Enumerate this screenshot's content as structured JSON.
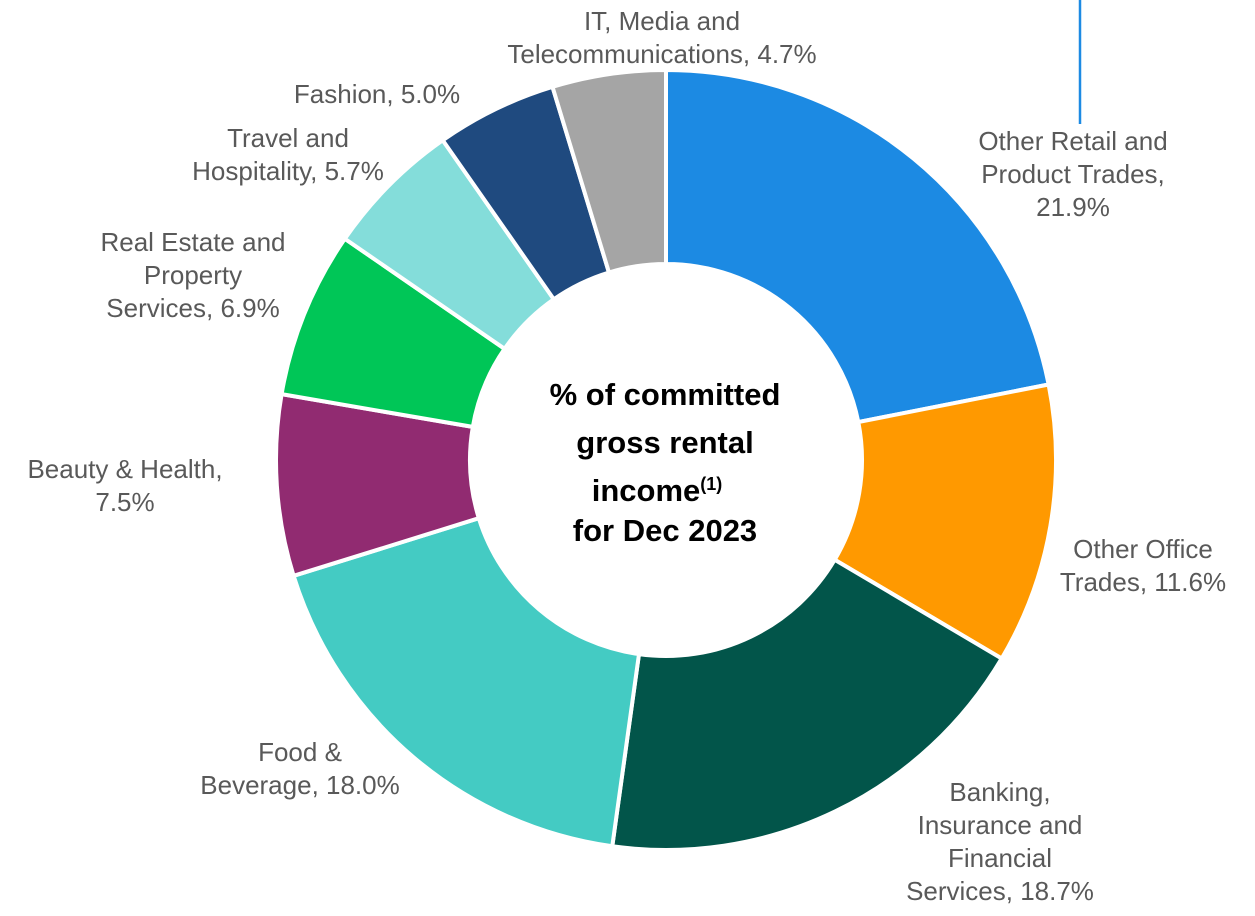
{
  "chart_data": {
    "type": "pie",
    "center_label": {
      "line1": "% of committed",
      "line2": "gross rental",
      "line3_main": "income",
      "line3_sup": "(1)",
      "line4": "for Dec 2023"
    },
    "slices": [
      {
        "name": "Other Retail and Product Trades",
        "value": 21.9,
        "color": "#1C8AE3",
        "label_lines": [
          "Other Retail and",
          "Product Trades,",
          "21.9%"
        ]
      },
      {
        "name": "Other Office Trades",
        "value": 11.6,
        "color": "#FF9900",
        "label_lines": [
          "Other Office",
          "Trades, 11.6%"
        ]
      },
      {
        "name": "Banking, Insurance and Financial Services",
        "value": 18.7,
        "color": "#02554A",
        "label_lines": [
          "Banking,",
          "Insurance and",
          "Financial",
          "Services, 18.7%"
        ]
      },
      {
        "name": "Food & Beverage",
        "value": 18.0,
        "color": "#44CBC3",
        "label_lines": [
          "Food &",
          "Beverage, 18.0%"
        ]
      },
      {
        "name": "Beauty & Health",
        "value": 7.5,
        "color": "#912B71",
        "label_lines": [
          "Beauty & Health,",
          "7.5%"
        ]
      },
      {
        "name": "Real Estate and Property Services",
        "value": 6.9,
        "color": "#00C657",
        "label_lines": [
          "Real Estate and",
          "Property",
          "Services, 6.9%"
        ]
      },
      {
        "name": "Travel and Hospitality",
        "value": 5.7,
        "color": "#84DDDA",
        "label_lines": [
          "Travel and",
          "Hospitality, 5.7%"
        ]
      },
      {
        "name": "Fashion",
        "value": 5.0,
        "color": "#1F4A7F",
        "label_lines": [
          "Fashion, 5.0%"
        ]
      },
      {
        "name": "IT, Media and Telecommunications",
        "value": 4.7,
        "color": "#A5A5A5",
        "label_lines": [
          "IT, Media and",
          "Telecommunications, 4.7%"
        ]
      }
    ]
  }
}
